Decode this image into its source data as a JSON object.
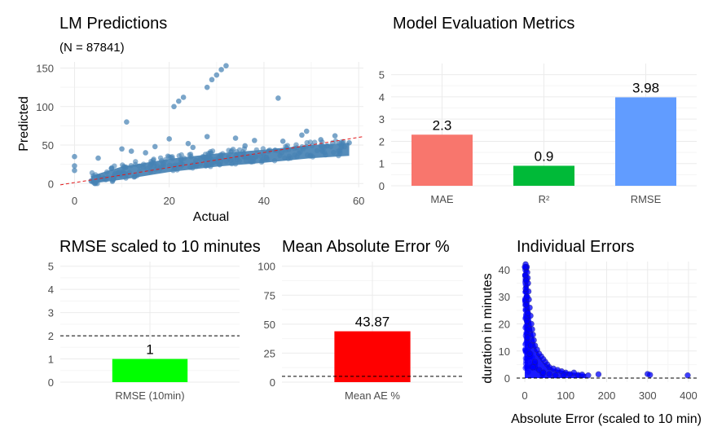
{
  "chart_data": [
    {
      "id": "lm",
      "type": "scatter",
      "title": "LM Predictions",
      "subtitle": "(N = 87841)",
      "xlabel": "Actual",
      "ylabel": "Predicted",
      "xlim": [
        -3,
        61
      ],
      "ylim": [
        -5,
        158
      ],
      "xticks": [
        0,
        20,
        40,
        60
      ],
      "yticks": [
        0,
        50,
        100,
        150
      ],
      "point_color": "#4682b4",
      "fit_color": "#e31a1c",
      "fit_line": [
        [
          -3,
          -1.7
        ],
        [
          61,
          61
        ]
      ],
      "points": [
        [
          29,
          135
        ],
        [
          30,
          141
        ],
        [
          31,
          148
        ],
        [
          32,
          153
        ],
        [
          28,
          125
        ],
        [
          22,
          107
        ],
        [
          23,
          112
        ],
        [
          21,
          100
        ],
        [
          43,
          111
        ],
        [
          11,
          80
        ],
        [
          20,
          58
        ],
        [
          28,
          61
        ],
        [
          34,
          59
        ],
        [
          48,
          63
        ],
        [
          49,
          68
        ],
        [
          55,
          62
        ],
        [
          56,
          52
        ],
        [
          10,
          45
        ],
        [
          12,
          42
        ],
        [
          5,
          33
        ],
        [
          0,
          35
        ],
        [
          0,
          23
        ],
        [
          0,
          17
        ],
        [
          17,
          48
        ],
        [
          24,
          52
        ],
        [
          38,
          56
        ],
        [
          44,
          55
        ],
        [
          52,
          57
        ],
        [
          15,
          40
        ],
        [
          25,
          47
        ],
        [
          36,
          49
        ],
        [
          58,
          53
        ]
      ],
      "cloud": [
        [
          3.5,
          4
        ],
        [
          10,
          16
        ],
        [
          20,
          26
        ],
        [
          30,
          33
        ],
        [
          40,
          38
        ],
        [
          50,
          44
        ],
        [
          58,
          47
        ]
      ]
    },
    {
      "id": "metrics",
      "type": "bar",
      "title": "Model Evaluation Metrics",
      "categories": [
        "MAE",
        "R²",
        "RMSE"
      ],
      "values": [
        2.3,
        0.9,
        3.98
      ],
      "labels": [
        "2.3",
        "0.9",
        "3.98"
      ],
      "colors": [
        "#f8766d",
        "#00ba38",
        "#619cff"
      ],
      "ylim": [
        0,
        5.5
      ],
      "yticks": [
        0,
        1,
        2,
        3,
        4,
        5
      ]
    },
    {
      "id": "rmse10",
      "type": "bar",
      "title": "RMSE scaled to 10 minutes",
      "categories": [
        "RMSE (10min)"
      ],
      "values": [
        1
      ],
      "labels": [
        "1"
      ],
      "colors": [
        "#00ff00"
      ],
      "ylim": [
        0,
        5.2
      ],
      "yticks": [
        0,
        1,
        2,
        3,
        4,
        5
      ],
      "reference_line": 2
    },
    {
      "id": "mae_pct",
      "type": "bar",
      "title": "Mean Absolute Error %",
      "categories": [
        "Mean AE %"
      ],
      "values": [
        43.87
      ],
      "labels": [
        "43.87"
      ],
      "colors": [
        "#ff0000"
      ],
      "ylim": [
        0,
        104
      ],
      "yticks": [
        0,
        25,
        50,
        75,
        100
      ],
      "reference_line": 5
    },
    {
      "id": "indiv",
      "type": "scatter",
      "title": "Individual Errors",
      "xlabel": "Absolute Error (scaled to 10 min)",
      "ylabel": "duration in minutes",
      "xlim": [
        -20,
        420
      ],
      "ylim": [
        -1.5,
        43
      ],
      "xticks": [
        0,
        100,
        200,
        300,
        400
      ],
      "yticks": [
        0,
        10,
        20,
        30,
        40
      ],
      "point_color": "#0000ff",
      "reference_line": 0,
      "points": [
        [
          300,
          1.5
        ],
        [
          306,
          1.2
        ],
        [
          398,
          1.0
        ],
        [
          180,
          1.4
        ],
        [
          155,
          1.0
        ],
        [
          130,
          1.2
        ],
        [
          120,
          2.0
        ],
        [
          100,
          2.0
        ],
        [
          90,
          2.5
        ],
        [
          80,
          3.0
        ],
        [
          70,
          3.5
        ],
        [
          60,
          4.0
        ],
        [
          55,
          5.0
        ],
        [
          50,
          6.0
        ],
        [
          45,
          7.0
        ],
        [
          40,
          8.0
        ],
        [
          35,
          9.0
        ],
        [
          30,
          10.5
        ],
        [
          25,
          12.0
        ],
        [
          22,
          14.0
        ],
        [
          20,
          16.0
        ],
        [
          18,
          18.0
        ],
        [
          16,
          20.0
        ],
        [
          14,
          23.0
        ],
        [
          12,
          26.0
        ],
        [
          10,
          29.0
        ],
        [
          9,
          32.0
        ],
        [
          8,
          35.0
        ],
        [
          7,
          37.0
        ],
        [
          6,
          39.0
        ],
        [
          5,
          41.0
        ],
        [
          3,
          41.0
        ],
        [
          2,
          42.0
        ],
        [
          0,
          41.0
        ],
        [
          1,
          38.0
        ],
        [
          4,
          36.0
        ],
        [
          2,
          33.0
        ],
        [
          6,
          30.0
        ],
        [
          3,
          27.0
        ],
        [
          8,
          24.0
        ],
        [
          5,
          21.0
        ],
        [
          10,
          18.0
        ],
        [
          7,
          15.0
        ],
        [
          15,
          12.0
        ],
        [
          12,
          9.0
        ],
        [
          25,
          6.0
        ],
        [
          20,
          4.0
        ],
        [
          35,
          3.0
        ],
        [
          45,
          2.0
        ],
        [
          60,
          1.5
        ],
        [
          75,
          1.0
        ],
        [
          110,
          1.5
        ],
        [
          140,
          1.3
        ],
        [
          95,
          1.1
        ]
      ]
    }
  ]
}
